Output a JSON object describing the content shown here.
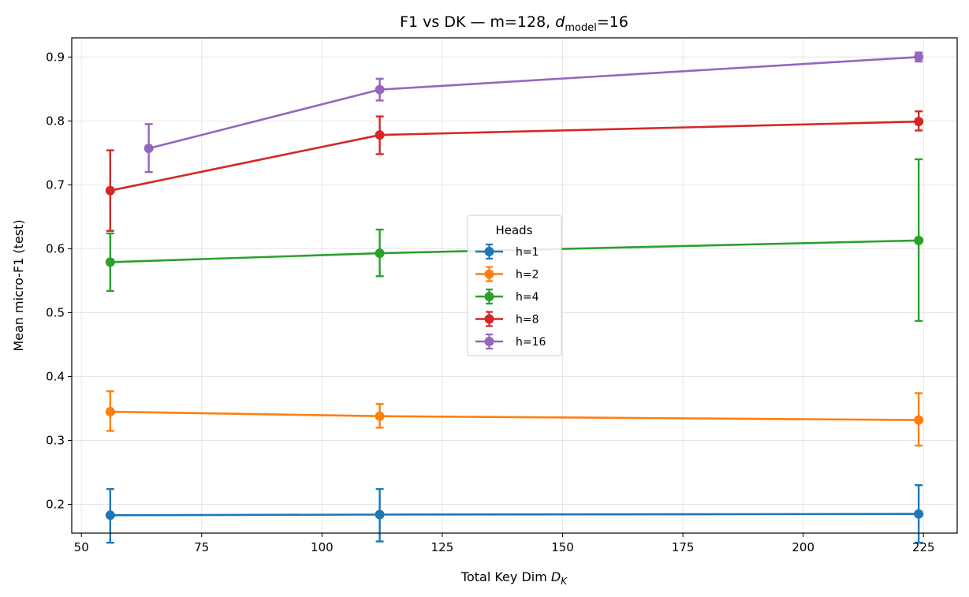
{
  "chart_data": {
    "type": "line",
    "title": "F1 vs DK — m=128, ",
    "title_math": {
      "base": "d",
      "sub": "model",
      "suffix": "=16"
    },
    "xlabel": "Total Key Dim ",
    "xlabel_math": {
      "base": "D",
      "sub": "K"
    },
    "ylabel": "Mean micro-F1 (test)",
    "xlim": [
      48,
      232
    ],
    "ylim": [
      0.155,
      0.93
    ],
    "xticks": [
      50,
      75,
      100,
      125,
      150,
      175,
      200,
      225
    ],
    "yticks": [
      0.2,
      0.3,
      0.4,
      0.5,
      0.6,
      0.7,
      0.8,
      0.9
    ],
    "grid": true,
    "legend": {
      "title": "Heads",
      "placement": "center"
    },
    "series": [
      {
        "name": "h=1",
        "color": "#1f77b4",
        "x": [
          56,
          112,
          224
        ],
        "y": [
          0.183,
          0.184,
          0.185
        ],
        "err_low": [
          0.14,
          0.142,
          0.14
        ],
        "err_high": [
          0.224,
          0.224,
          0.23
        ]
      },
      {
        "name": "h=2",
        "color": "#ff7f0e",
        "x": [
          56,
          112,
          224
        ],
        "y": [
          0.345,
          0.338,
          0.332
        ],
        "err_low": [
          0.315,
          0.32,
          0.292
        ],
        "err_high": [
          0.377,
          0.357,
          0.374
        ]
      },
      {
        "name": "h=4",
        "color": "#2ca02c",
        "x": [
          56,
          112,
          224
        ],
        "y": [
          0.579,
          0.593,
          0.613
        ],
        "err_low": [
          0.534,
          0.557,
          0.487
        ],
        "err_high": [
          0.624,
          0.63,
          0.74
        ]
      },
      {
        "name": "h=8",
        "color": "#d62728",
        "x": [
          56,
          112,
          224
        ],
        "y": [
          0.691,
          0.778,
          0.799
        ],
        "err_low": [
          0.628,
          0.748,
          0.785
        ],
        "err_high": [
          0.754,
          0.807,
          0.815
        ]
      },
      {
        "name": "h=16",
        "color": "#9467bd",
        "x": [
          64,
          112,
          224
        ],
        "y": [
          0.757,
          0.849,
          0.9
        ],
        "err_low": [
          0.72,
          0.832,
          0.893
        ],
        "err_high": [
          0.795,
          0.866,
          0.907
        ]
      }
    ]
  }
}
